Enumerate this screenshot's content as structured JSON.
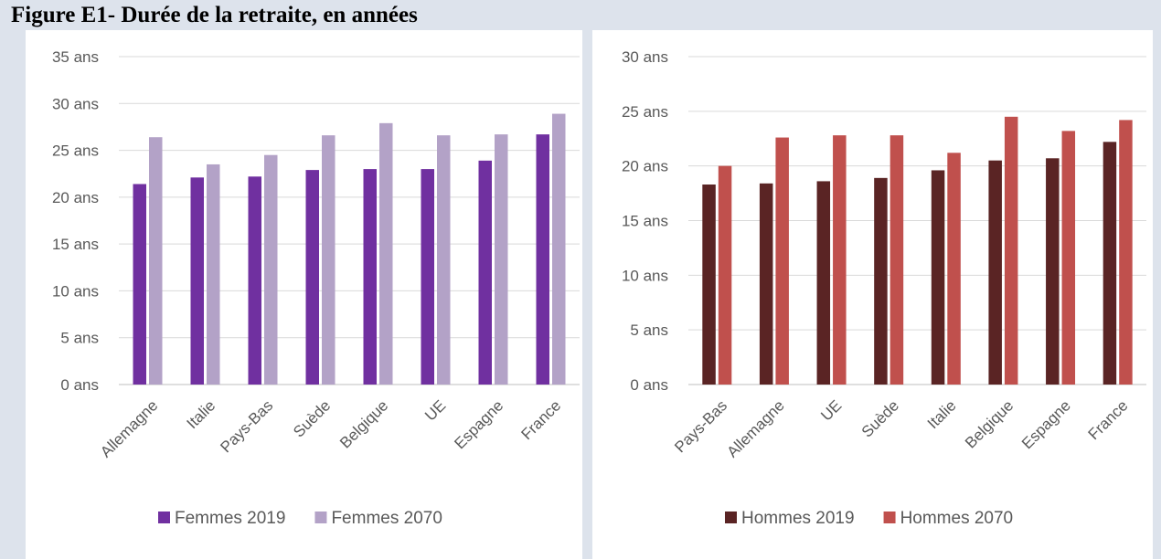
{
  "figure_title": "Figure E1- Durée de la retraite, en années",
  "chart_data": [
    {
      "type": "bar",
      "title": "",
      "xlabel": "",
      "ylabel": "",
      "ylim": [
        0,
        35
      ],
      "y_ticks": [
        "0 ans",
        "5 ans",
        "10 ans",
        "15 ans",
        "20 ans",
        "25 ans",
        "30 ans",
        "35 ans"
      ],
      "grid": true,
      "legend_position": "bottom",
      "categories": [
        "Allemagne",
        "Italie",
        "Pays-Bas",
        "Suède",
        "Belgique",
        "UE",
        "Espagne",
        "France"
      ],
      "series": [
        {
          "name": "Femmes 2019",
          "color": "#7030a0",
          "values": [
            21.4,
            22.1,
            22.2,
            22.9,
            23.0,
            23.0,
            23.9,
            26.7
          ]
        },
        {
          "name": "Femmes 2070",
          "color": "#b3a2c7",
          "values": [
            26.4,
            23.5,
            24.5,
            26.6,
            27.9,
            26.6,
            26.7,
            28.9
          ]
        }
      ]
    },
    {
      "type": "bar",
      "title": "",
      "xlabel": "",
      "ylabel": "",
      "ylim": [
        0,
        30
      ],
      "y_ticks": [
        "0 ans",
        "5 ans",
        "10 ans",
        "15 ans",
        "20 ans",
        "25 ans",
        "30 ans"
      ],
      "grid": true,
      "legend_position": "bottom",
      "categories": [
        "Pays-Bas",
        "Allemagne",
        "UE",
        "Suède",
        "Italie",
        "Belgique",
        "Espagne",
        "France"
      ],
      "series": [
        {
          "name": "Hommes 2019",
          "color": "#5a2424",
          "values": [
            18.3,
            18.4,
            18.6,
            18.9,
            19.6,
            20.5,
            20.7,
            22.2
          ]
        },
        {
          "name": "Hommes 2070",
          "color": "#c0504d",
          "values": [
            20.0,
            22.6,
            22.8,
            22.8,
            21.2,
            24.5,
            23.2,
            24.2
          ]
        }
      ]
    }
  ]
}
